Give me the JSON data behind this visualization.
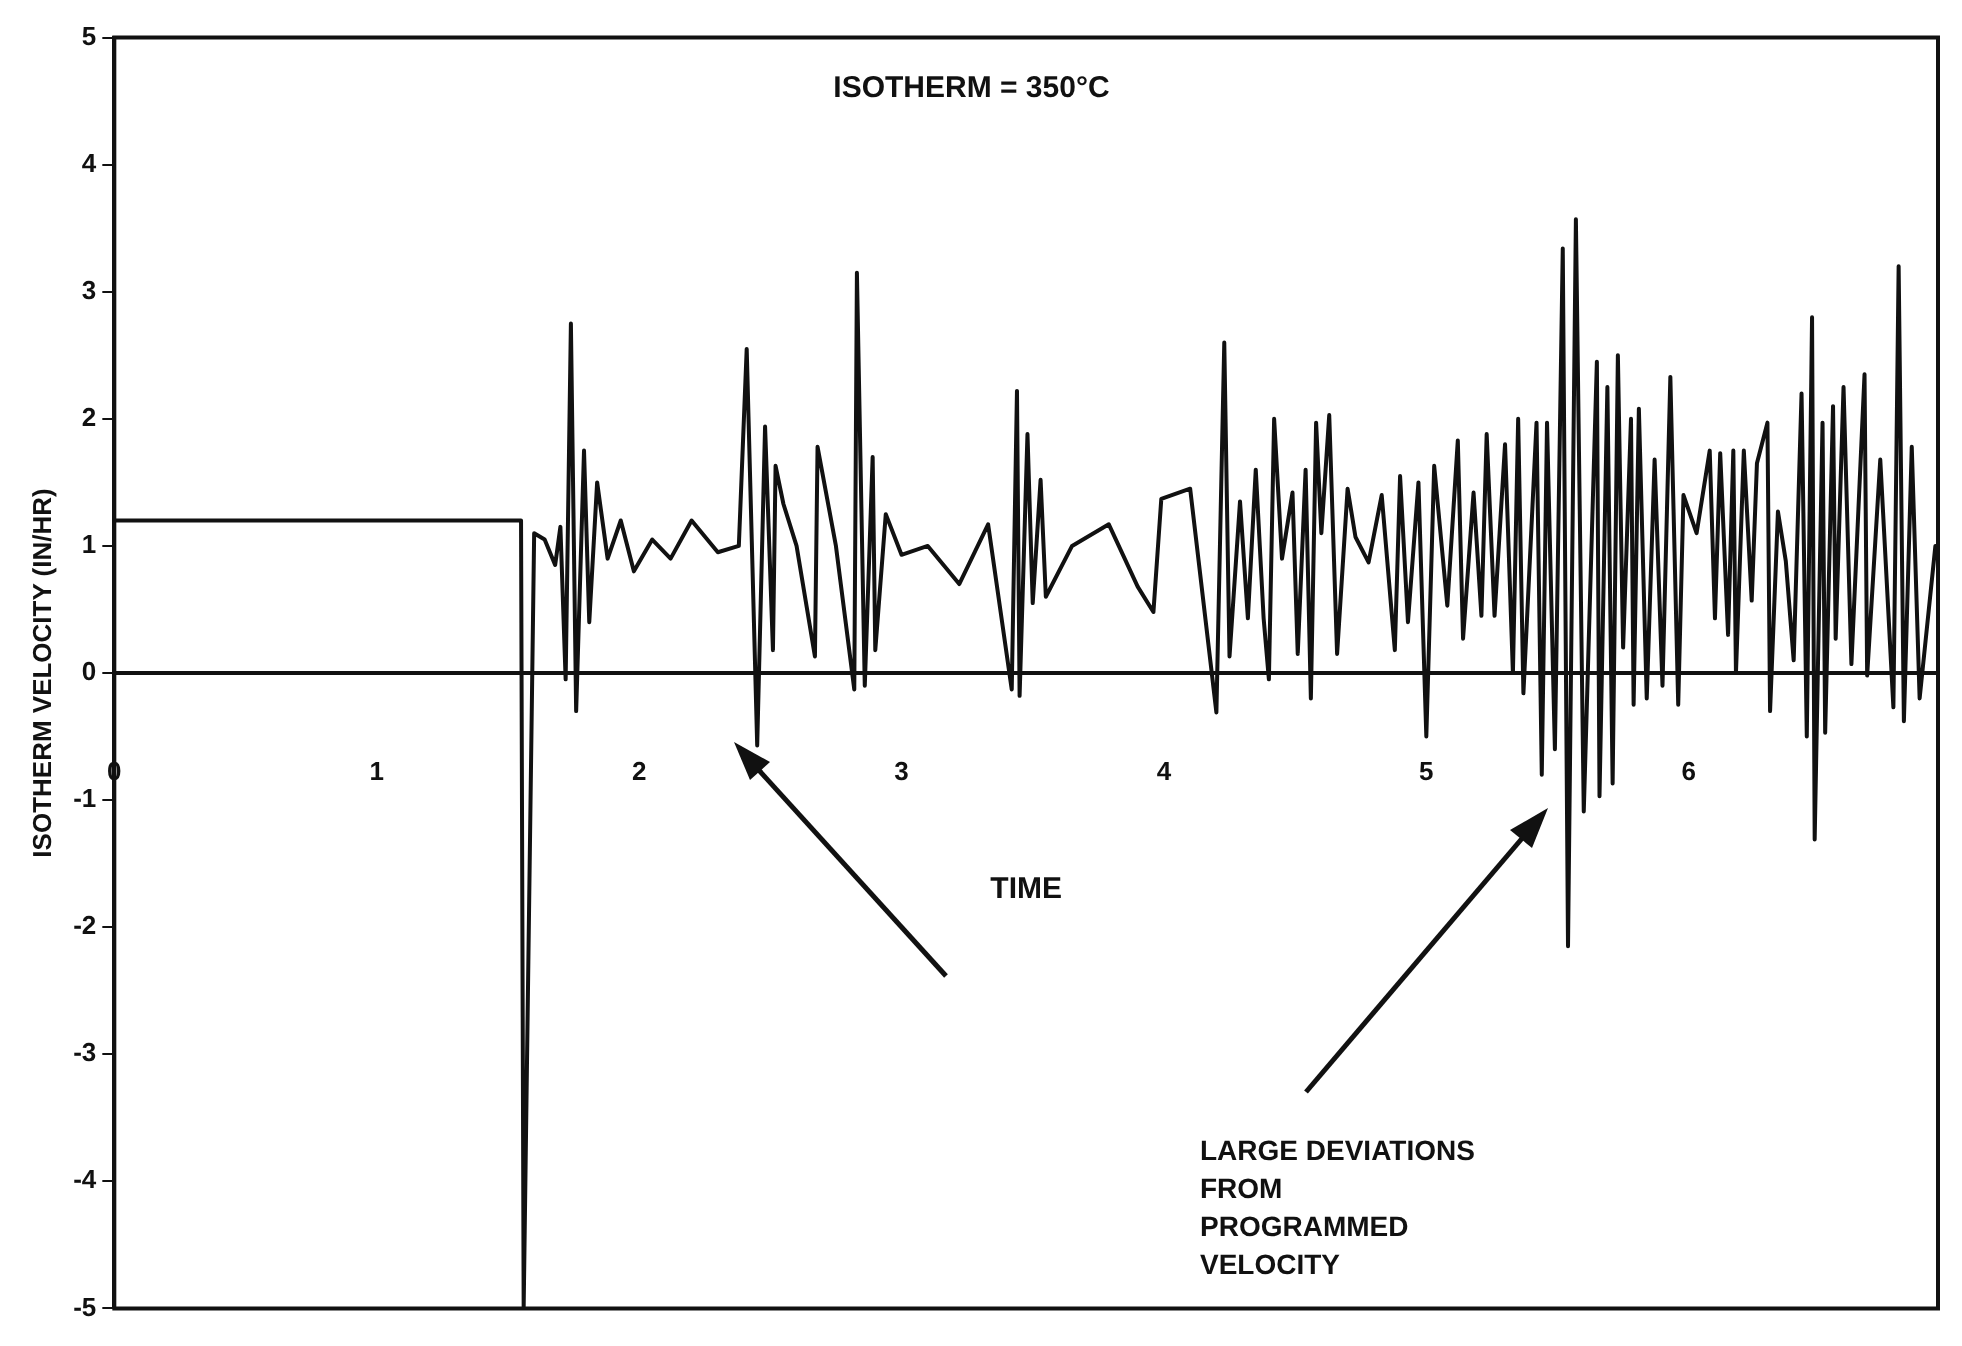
{
  "chart_data": {
    "type": "line",
    "title": "ISOTHERM = 350°C",
    "xlabel": "TIME",
    "ylabel": "ISOTHERM VELOCITY (IN/HR)",
    "annotations": [
      "LARGE DEVIATIONS FROM PROGRAMMED VELOCITY"
    ],
    "xlim": [
      0,
      6.95
    ],
    "xticks": [
      0,
      1,
      2,
      3,
      4,
      5,
      6
    ],
    "ylim": [
      -5,
      5
    ],
    "yticks": [
      -5,
      -4,
      -3,
      -2,
      -1,
      0,
      1,
      2,
      3,
      4,
      5
    ],
    "grid": false,
    "ref_lines": [
      {
        "axis": "y",
        "value": 0,
        "color": "#111111"
      }
    ],
    "legend": false,
    "marker": "none",
    "line_style": "solid",
    "series": [
      {
        "color": "#111111",
        "x": [
          0,
          1.55,
          1.56,
          1.6,
          1.64,
          1.68,
          1.7,
          1.72,
          1.74,
          1.76,
          1.79,
          1.81,
          1.84,
          1.88,
          1.93,
          1.98,
          2.05,
          2.12,
          2.2,
          2.3,
          2.38,
          2.41,
          2.45,
          2.48,
          2.51,
          2.52,
          2.55,
          2.6,
          2.67,
          2.68,
          2.75,
          2.82,
          2.83,
          2.86,
          2.89,
          2.9,
          2.94,
          3.0,
          3.1,
          3.22,
          3.33,
          3.42,
          3.44,
          3.45,
          3.48,
          3.5,
          3.53,
          3.55,
          3.65,
          3.79,
          3.9,
          3.96,
          3.99,
          4.1,
          4.2,
          4.23,
          4.25,
          4.29,
          4.32,
          4.35,
          4.38,
          4.4,
          4.42,
          4.45,
          4.49,
          4.51,
          4.54,
          4.56,
          4.58,
          4.6,
          4.63,
          4.66,
          4.7,
          4.73,
          4.78,
          4.83,
          4.88,
          4.9,
          4.93,
          4.97,
          5.0,
          5.03,
          5.08,
          5.12,
          5.14,
          5.18,
          5.21,
          5.23,
          5.26,
          5.3,
          5.33,
          5.35,
          5.37,
          5.42,
          5.44,
          5.46,
          5.49,
          5.52,
          5.54,
          5.57,
          5.6,
          5.65,
          5.66,
          5.69,
          5.71,
          5.73,
          5.75,
          5.78,
          5.79,
          5.81,
          5.84,
          5.87,
          5.9,
          5.93,
          5.96,
          5.98,
          6.03,
          6.08,
          6.1,
          6.12,
          6.15,
          6.17,
          6.18,
          6.21,
          6.24,
          6.26,
          6.3,
          6.31,
          6.34,
          6.37,
          6.4,
          6.43,
          6.45,
          6.47,
          6.48,
          6.51,
          6.52,
          6.55,
          6.56,
          6.59,
          6.62,
          6.67,
          6.68,
          6.73,
          6.78,
          6.8,
          6.82,
          6.85,
          6.88,
          6.94
        ],
        "values": [
          1.2,
          1.2,
          -5,
          1.1,
          1.05,
          0.85,
          1.15,
          -0.05,
          2.75,
          -0.3,
          1.75,
          0.4,
          1.5,
          0.9,
          1.2,
          0.8,
          1.05,
          0.9,
          1.2,
          0.95,
          1.0,
          2.55,
          -0.57,
          1.94,
          0.18,
          1.63,
          1.33,
          1.0,
          0.13,
          1.78,
          1.0,
          -0.13,
          3.15,
          -0.1,
          1.7,
          0.18,
          1.25,
          0.93,
          1.0,
          0.7,
          1.17,
          -0.13,
          2.22,
          -0.18,
          1.88,
          0.55,
          1.52,
          0.6,
          1.0,
          1.17,
          0.68,
          0.48,
          1.37,
          1.45,
          -0.31,
          2.6,
          0.13,
          1.35,
          0.43,
          1.6,
          0.43,
          -0.05,
          2.0,
          0.9,
          1.42,
          0.15,
          1.6,
          -0.2,
          1.97,
          1.1,
          2.03,
          0.15,
          1.45,
          1.07,
          0.87,
          1.4,
          0.18,
          1.55,
          0.4,
          1.5,
          -0.5,
          1.63,
          0.53,
          1.83,
          0.27,
          1.42,
          0.45,
          1.88,
          0.45,
          1.8,
          0.0,
          2.0,
          -0.16,
          1.97,
          -0.8,
          1.97,
          -0.6,
          3.34,
          -2.15,
          3.57,
          -1.09,
          2.45,
          -0.97,
          2.25,
          -0.87,
          2.5,
          0.2,
          2.0,
          -0.25,
          2.08,
          -0.2,
          1.68,
          -0.1,
          2.33,
          -0.25,
          1.4,
          1.1,
          1.75,
          0.43,
          1.73,
          0.3,
          1.75,
          0.0,
          1.75,
          0.57,
          1.65,
          1.97,
          -0.3,
          1.27,
          0.88,
          0.1,
          2.2,
          -0.5,
          2.8,
          -1.31,
          1.97,
          -0.47,
          2.1,
          0.27,
          2.25,
          0.07,
          2.35,
          -0.02,
          1.68,
          -0.27,
          3.2,
          -0.38,
          1.78,
          -0.2,
          1.0
        ]
      }
    ]
  }
}
